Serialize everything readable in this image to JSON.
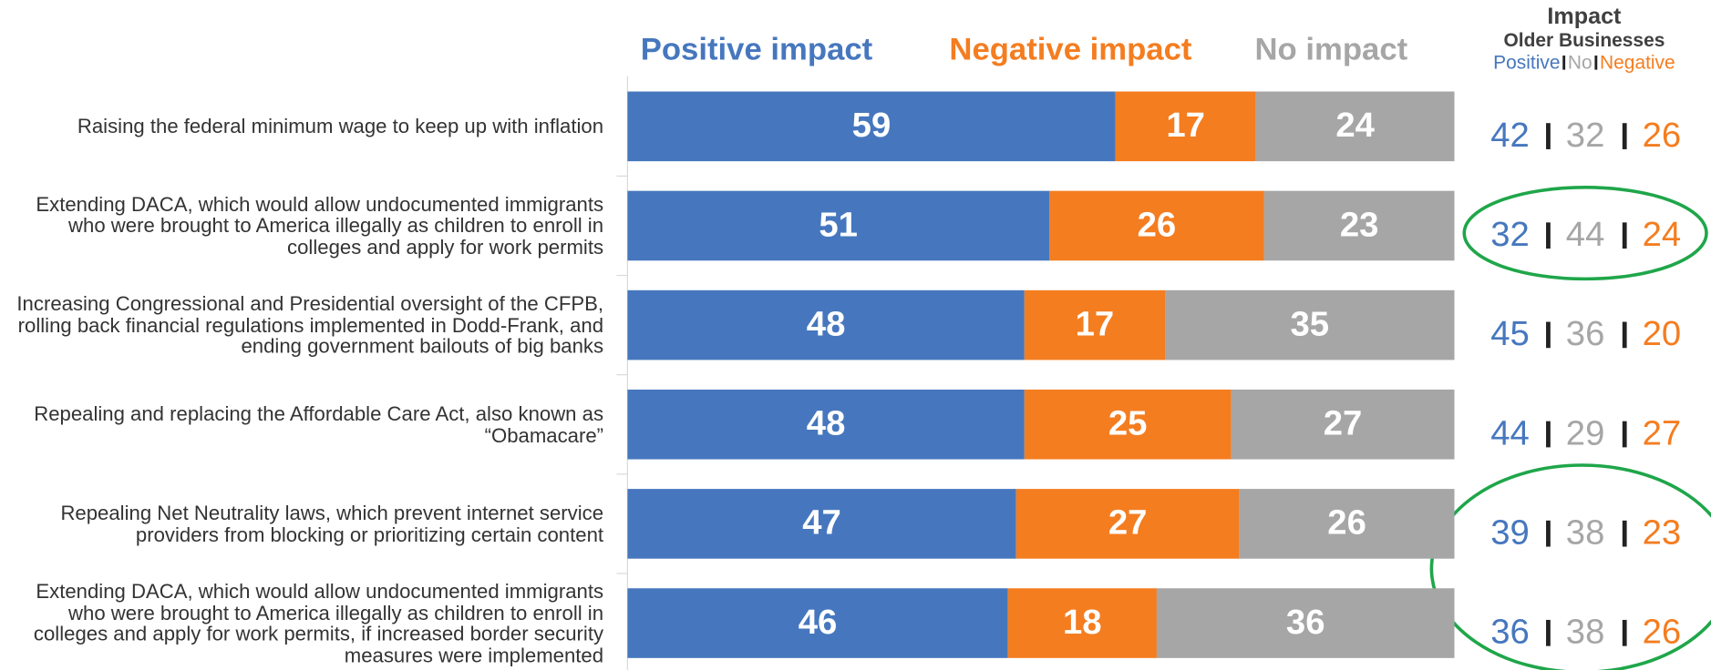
{
  "chart_data": {
    "type": "bar",
    "orientation": "horizontal",
    "stacked": true,
    "categories": [
      "Raising the federal minimum wage to keep up with inflation",
      "Extending DACA, which would allow undocumented immigrants who were brought to America illegally as children to enroll in colleges and apply for work permits",
      "Increasing Congressional and Presidential oversight of the CFPB, rolling back financial regulations implemented in Dodd-Frank, and ending government bailouts of big banks",
      "Repealing and replacing the Affordable Care Act, also known as “Obamacare”",
      "Repealing Net Neutrality laws, which prevent internet service providers from blocking or prioritizing certain content",
      "Extending DACA, which would allow undocumented immigrants who were brought to America illegally as children to enroll in colleges and apply for work permits, if increased border security measures were implemented"
    ],
    "series": [
      {
        "name": "Positive impact",
        "color": "#4677be",
        "values": [
          59,
          51,
          48,
          48,
          47,
          46
        ]
      },
      {
        "name": "Negative impact",
        "color": "#f47d20",
        "values": [
          17,
          26,
          17,
          25,
          27,
          18
        ]
      },
      {
        "name": "No impact",
        "color": "#a6a6a6",
        "values": [
          24,
          23,
          35,
          27,
          26,
          36
        ]
      }
    ],
    "xlim": [
      0,
      100
    ]
  },
  "older_businesses": {
    "title": "Impact",
    "subtitle": "Older Businesses",
    "columns": [
      "Positive",
      "No",
      "Negative"
    ],
    "colors": [
      "#4677be",
      "#a6a6a6",
      "#f47d20"
    ],
    "rows": [
      [
        42,
        32,
        26
      ],
      [
        32,
        44,
        24
      ],
      [
        45,
        36,
        20
      ],
      [
        44,
        29,
        27
      ],
      [
        39,
        38,
        23
      ],
      [
        36,
        38,
        26
      ]
    ]
  }
}
